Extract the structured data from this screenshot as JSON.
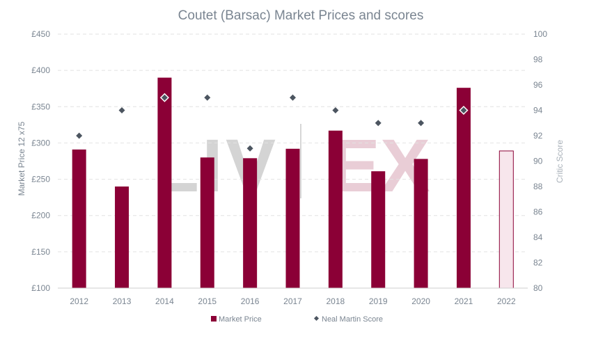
{
  "chart_data": {
    "type": "bar",
    "title": "Coutet (Barsac) Market Prices and scores",
    "xlabel": "",
    "ylabel": "Market Price 12 x75",
    "y2label": "Critic Score",
    "ylim": [
      100,
      450
    ],
    "y2lim": [
      80,
      100
    ],
    "y_ticks": [
      "£100",
      "£150",
      "£200",
      "£250",
      "£300",
      "£350",
      "£400",
      "£450"
    ],
    "y_tick_values": [
      100,
      150,
      200,
      250,
      300,
      350,
      400,
      450
    ],
    "y2_ticks": [
      "80",
      "82",
      "84",
      "86",
      "88",
      "90",
      "92",
      "94",
      "96",
      "98",
      "100"
    ],
    "y2_tick_values": [
      80,
      82,
      84,
      86,
      88,
      90,
      92,
      94,
      96,
      98,
      100
    ],
    "categories": [
      "2012",
      "2013",
      "2014",
      "2015",
      "2016",
      "2017",
      "2018",
      "2019",
      "2020",
      "2021",
      "2022"
    ],
    "grid": true,
    "legend_position": "bottom",
    "watermark": {
      "left": "LIV",
      "right": "EX",
      "left_color": "#d4d4d4",
      "right_color": "#e9cdd6"
    },
    "colors": {
      "bar": "#8b0036",
      "bar_light": "#f7e6ec",
      "score_marker": "#4c5560",
      "title": "#7a8591",
      "axis_text": "#7a8591",
      "grid": "#e2e2e2"
    },
    "series": [
      {
        "name": "Market Price",
        "kind": "bar",
        "axis": "left",
        "values": [
          291,
          240,
          390,
          280,
          279,
          292,
          317,
          261,
          278,
          376,
          289
        ],
        "highlight": [
          false,
          false,
          false,
          false,
          false,
          false,
          false,
          false,
          false,
          false,
          true
        ]
      },
      {
        "name": "Neal Martin Score",
        "kind": "marker",
        "axis": "right",
        "values": [
          92,
          94,
          95,
          95,
          91,
          95,
          94,
          93,
          93,
          94,
          null
        ]
      }
    ]
  }
}
